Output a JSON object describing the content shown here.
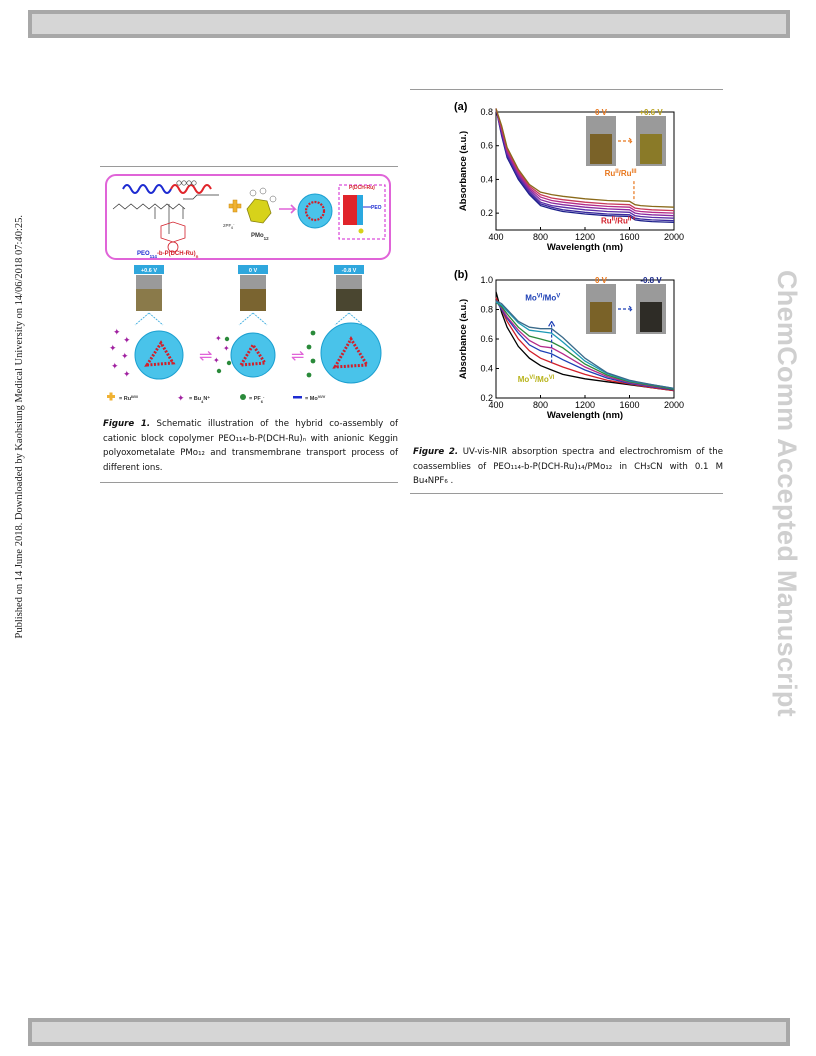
{
  "sidebar_left": "Published on 14 June 2018. Downloaded by Kaohsiung Medical University on 14/06/2018 07:40:25.",
  "sidebar_right": "ChemComm Accepted Manuscript",
  "figure1": {
    "labels": {
      "copolymer": "PEO",
      "copolymer_sub": "114",
      "copolymer_rest": "-b-P(DCH-Ru)",
      "copolymer_n": "n",
      "pmo": "PMo",
      "pmo_sub": "12",
      "inset_top": "P(DCH-Ru)",
      "inset_peo": "PEO",
      "pf6": "2PF",
      "pf6_sub": "6",
      "v1": "+0.6 V",
      "v2": "0 V",
      "v3": "-0.8 V",
      "legend_ru": "= Ru",
      "legend_ru_sup": "II/III",
      "legend_bu": "= Bu",
      "legend_bu_sub": "4",
      "legend_bu_sup": "N⁺",
      "legend_pf": "= PF",
      "legend_pf_sub": "6",
      "legend_mo": "= Mo",
      "legend_mo_sup": "VI/V"
    },
    "caption_label": "Figure 1.",
    "caption_text": "Schematic illustration of the hybrid co-assembly of cationic block copolymer PEO₁₁₄-b-P(DCH-Ru)ₙ with anionic Keggin polyoxometalate PMo₁₂ and transmembrane transport process of different ions."
  },
  "figure2": {
    "caption_label": "Figure 2.",
    "caption_text": "UV-vis-NIR absorption spectra and electrochromism of the coassemblies of PEO₁₁₄-b-P(DCH-Ru)₁₄/PMo₁₂ in CH₃CN with 0.1 M Bu₄NPF₆ ."
  },
  "chart_data": [
    {
      "panel": "(a)",
      "type": "line",
      "xlabel": "Wavelength (nm)",
      "ylabel": "Absorbance (a.u.)",
      "xlim": [
        400,
        2000
      ],
      "ylim": [
        0.1,
        0.8
      ],
      "xticks": [
        400,
        800,
        1200,
        1600,
        2000
      ],
      "yticks": [
        0.2,
        0.4,
        0.6,
        0.8
      ],
      "annotations": [
        {
          "text": "Ru",
          "sup": "II",
          "rest": "/Ru",
          "sup2": "III",
          "color": "#e8761c"
        },
        {
          "text": "Ru",
          "sup": "II",
          "rest": "/Ru",
          "sup2": "II",
          "color": "#d21f2a"
        }
      ],
      "inset_labels": [
        "0 V",
        "+0.6 V"
      ],
      "x": [
        400,
        450,
        500,
        600,
        700,
        800,
        900,
        1000,
        1200,
        1400,
        1600,
        1650,
        1700,
        1800,
        2000
      ],
      "series": [
        {
          "color": "#1b1f8a",
          "values": [
            0.82,
            0.66,
            0.53,
            0.4,
            0.31,
            0.245,
            0.225,
            0.21,
            0.195,
            0.185,
            0.18,
            0.16,
            0.155,
            0.15,
            0.145
          ]
        },
        {
          "color": "#3a2a9e",
          "values": [
            0.82,
            0.67,
            0.54,
            0.41,
            0.32,
            0.255,
            0.235,
            0.22,
            0.205,
            0.195,
            0.19,
            0.17,
            0.165,
            0.16,
            0.155
          ]
        },
        {
          "color": "#5b2fa8",
          "values": [
            0.82,
            0.68,
            0.55,
            0.42,
            0.33,
            0.265,
            0.245,
            0.235,
            0.22,
            0.21,
            0.205,
            0.185,
            0.18,
            0.175,
            0.17
          ]
        },
        {
          "color": "#8a2aa0",
          "values": [
            0.82,
            0.69,
            0.56,
            0.43,
            0.34,
            0.28,
            0.26,
            0.25,
            0.235,
            0.225,
            0.22,
            0.2,
            0.195,
            0.19,
            0.185
          ]
        },
        {
          "color": "#b52a8a",
          "values": [
            0.82,
            0.7,
            0.57,
            0.44,
            0.35,
            0.295,
            0.275,
            0.265,
            0.25,
            0.24,
            0.235,
            0.215,
            0.21,
            0.205,
            0.2
          ]
        },
        {
          "color": "#c83a5a",
          "values": [
            0.82,
            0.71,
            0.58,
            0.45,
            0.36,
            0.31,
            0.29,
            0.28,
            0.265,
            0.255,
            0.25,
            0.23,
            0.225,
            0.22,
            0.215
          ]
        },
        {
          "color": "#8a6a1a",
          "values": [
            0.82,
            0.72,
            0.59,
            0.46,
            0.37,
            0.325,
            0.31,
            0.3,
            0.285,
            0.275,
            0.27,
            0.25,
            0.245,
            0.24,
            0.235
          ]
        }
      ]
    },
    {
      "panel": "(b)",
      "type": "line",
      "xlabel": "Wavelength (nm)",
      "ylabel": "Absorbance (a.u.)",
      "xlim": [
        400,
        2000
      ],
      "ylim": [
        0.2,
        1.0
      ],
      "xticks": [
        400,
        800,
        1200,
        1600,
        2000
      ],
      "yticks": [
        0.2,
        0.4,
        0.6,
        0.8,
        1.0
      ],
      "annotations": [
        {
          "text": "Mo",
          "sup": "VI",
          "rest": "/Mo",
          "sup2": "V",
          "color": "#1c3fb5"
        },
        {
          "text": "Mo",
          "sup": "VI",
          "rest": "/Mo",
          "sup2": "VI",
          "color": "#b8b41c"
        }
      ],
      "inset_labels": [
        "0 V",
        "-0.8 V"
      ],
      "x": [
        400,
        450,
        500,
        600,
        700,
        800,
        900,
        1000,
        1200,
        1400,
        1600,
        1800,
        2000
      ],
      "series": [
        {
          "color": "#000000",
          "values": [
            0.92,
            0.78,
            0.68,
            0.55,
            0.47,
            0.42,
            0.39,
            0.36,
            0.33,
            0.31,
            0.29,
            0.27,
            0.25
          ]
        },
        {
          "color": "#d21f2a",
          "values": [
            0.88,
            0.8,
            0.72,
            0.6,
            0.52,
            0.47,
            0.44,
            0.41,
            0.36,
            0.32,
            0.295,
            0.27,
            0.25
          ]
        },
        {
          "color": "#1c3fb5",
          "values": [
            0.86,
            0.8,
            0.74,
            0.64,
            0.56,
            0.52,
            0.5,
            0.46,
            0.39,
            0.335,
            0.3,
            0.275,
            0.255
          ]
        },
        {
          "color": "#b52a8a",
          "values": [
            0.86,
            0.81,
            0.75,
            0.66,
            0.59,
            0.55,
            0.54,
            0.5,
            0.41,
            0.345,
            0.305,
            0.28,
            0.26
          ]
        },
        {
          "color": "#2a8a3a",
          "values": [
            0.85,
            0.82,
            0.77,
            0.68,
            0.62,
            0.6,
            0.58,
            0.54,
            0.43,
            0.355,
            0.31,
            0.285,
            0.26
          ]
        },
        {
          "color": "#1c9ab5",
          "values": [
            0.85,
            0.83,
            0.79,
            0.71,
            0.66,
            0.65,
            0.64,
            0.58,
            0.45,
            0.365,
            0.315,
            0.29,
            0.265
          ]
        },
        {
          "color": "#3a6a8a",
          "values": [
            0.86,
            0.84,
            0.8,
            0.72,
            0.68,
            0.67,
            0.67,
            0.61,
            0.47,
            0.37,
            0.32,
            0.29,
            0.265
          ]
        }
      ]
    }
  ]
}
